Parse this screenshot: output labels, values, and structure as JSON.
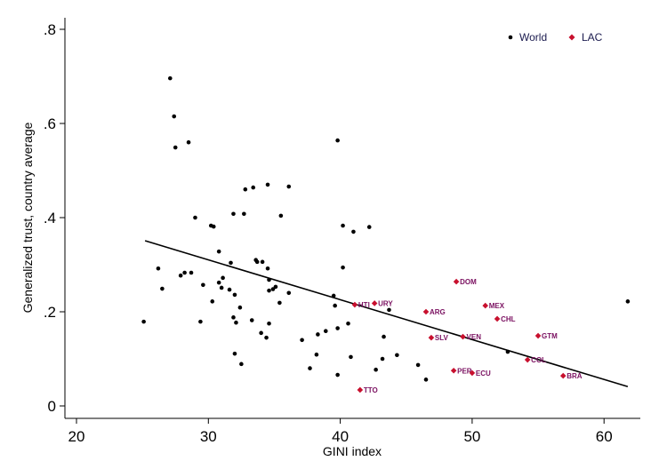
{
  "chart_data": {
    "type": "scatter",
    "title": "",
    "xlabel": "GINI index",
    "ylabel": "Generalized trust, country average",
    "xlim": [
      19.3,
      62.5
    ],
    "ylim": [
      -0.01,
      0.83
    ],
    "xticks": [
      20,
      30,
      40,
      50,
      60
    ],
    "xtick_labels": [
      "20",
      "30",
      "40",
      "50",
      "60"
    ],
    "yticks": [
      0,
      0.2,
      0.4,
      0.6,
      0.8
    ],
    "ytick_labels": [
      "0",
      ".2",
      ".4",
      ".6",
      ".8"
    ],
    "grid": false,
    "legend": {
      "placement": "top-right",
      "entries": [
        "World",
        "LAC"
      ]
    },
    "colors": {
      "world": "#000000",
      "lac": "#c8102e",
      "fit": "#000000"
    },
    "series": [
      {
        "name": "World",
        "points": [
          [
            25.1,
            0.179
          ],
          [
            26.2,
            0.292
          ],
          [
            26.5,
            0.249
          ],
          [
            27.1,
            0.696
          ],
          [
            27.4,
            0.615
          ],
          [
            27.5,
            0.549
          ],
          [
            27.9,
            0.277
          ],
          [
            28.2,
            0.283
          ],
          [
            28.5,
            0.56
          ],
          [
            28.7,
            0.283
          ],
          [
            29.0,
            0.4
          ],
          [
            29.4,
            0.179
          ],
          [
            29.6,
            0.257
          ],
          [
            30.3,
            0.222
          ],
          [
            30.2,
            0.383
          ],
          [
            30.4,
            0.381
          ],
          [
            30.8,
            0.328
          ],
          [
            30.8,
            0.262
          ],
          [
            31.0,
            0.251
          ],
          [
            31.1,
            0.272
          ],
          [
            31.6,
            0.247
          ],
          [
            31.7,
            0.304
          ],
          [
            31.9,
            0.408
          ],
          [
            32.0,
            0.236
          ],
          [
            31.9,
            0.188
          ],
          [
            32.1,
            0.177
          ],
          [
            32.0,
            0.111
          ],
          [
            32.4,
            0.209
          ],
          [
            32.7,
            0.408
          ],
          [
            32.8,
            0.46
          ],
          [
            32.5,
            0.089
          ],
          [
            33.4,
            0.464
          ],
          [
            33.6,
            0.31
          ],
          [
            33.7,
            0.306
          ],
          [
            33.3,
            0.182
          ],
          [
            34.1,
            0.306
          ],
          [
            34.0,
            0.155
          ],
          [
            34.5,
            0.47
          ],
          [
            34.5,
            0.292
          ],
          [
            34.6,
            0.268
          ],
          [
            34.6,
            0.245
          ],
          [
            34.4,
            0.145
          ],
          [
            34.6,
            0.175
          ],
          [
            34.9,
            0.248
          ],
          [
            35.1,
            0.253
          ],
          [
            35.4,
            0.219
          ],
          [
            35.5,
            0.404
          ],
          [
            36.1,
            0.24
          ],
          [
            36.1,
            0.466
          ],
          [
            37.1,
            0.14
          ],
          [
            37.7,
            0.08
          ],
          [
            38.2,
            0.109
          ],
          [
            38.3,
            0.152
          ],
          [
            38.9,
            0.159
          ],
          [
            39.5,
            0.234
          ],
          [
            39.6,
            0.213
          ],
          [
            39.8,
            0.564
          ],
          [
            39.8,
            0.066
          ],
          [
            39.8,
            0.165
          ],
          [
            40.2,
            0.383
          ],
          [
            40.2,
            0.294
          ],
          [
            40.6,
            0.175
          ],
          [
            40.8,
            0.104
          ],
          [
            41.0,
            0.37
          ],
          [
            42.2,
            0.38
          ],
          [
            43.7,
            0.204
          ],
          [
            43.3,
            0.147
          ],
          [
            43.2,
            0.1
          ],
          [
            42.7,
            0.077
          ],
          [
            44.3,
            0.108
          ],
          [
            45.9,
            0.087
          ],
          [
            46.5,
            0.056
          ],
          [
            52.7,
            0.115
          ],
          [
            61.8,
            0.222
          ]
        ]
      },
      {
        "name": "LAC",
        "points": [
          {
            "label": "DOM",
            "x": 48.8,
            "y": 0.264
          },
          {
            "label": "HTI",
            "x": 41.1,
            "y": 0.215
          },
          {
            "label": "URY",
            "x": 42.6,
            "y": 0.218
          },
          {
            "label": "ARG",
            "x": 46.5,
            "y": 0.2
          },
          {
            "label": "MEX",
            "x": 51.0,
            "y": 0.213
          },
          {
            "label": "CHL",
            "x": 51.9,
            "y": 0.185
          },
          {
            "label": "SLV",
            "x": 46.9,
            "y": 0.145
          },
          {
            "label": "VEN",
            "x": 49.3,
            "y": 0.147
          },
          {
            "label": "GTM",
            "x": 55.0,
            "y": 0.149
          },
          {
            "label": "COL",
            "x": 54.2,
            "y": 0.098
          },
          {
            "label": "PER",
            "x": 48.6,
            "y": 0.075
          },
          {
            "label": "ECU",
            "x": 50.0,
            "y": 0.07
          },
          {
            "label": "BRA",
            "x": 56.9,
            "y": 0.064
          },
          {
            "label": "TTO",
            "x": 41.5,
            "y": 0.034
          }
        ]
      }
    ],
    "fit_line": {
      "x": [
        25.2,
        61.8
      ],
      "y": [
        0.351,
        0.041
      ]
    }
  }
}
